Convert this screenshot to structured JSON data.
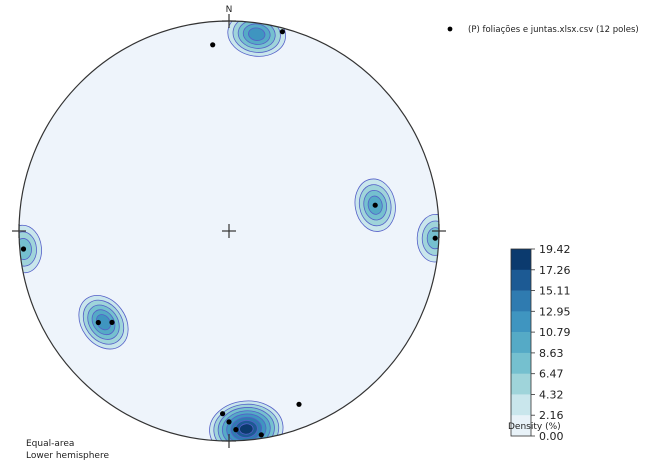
{
  "chart_data": {
    "type": "stereonet-density",
    "projection_label": [
      "Equal-area",
      "Lower hemisphere"
    ],
    "north_label": "N",
    "legend": {
      "marker": "●",
      "label": "(P) foliações e juntas.xlsx.csv (12 poles)"
    },
    "colorbar": {
      "title": "Density (%)",
      "ticks": [
        "19.42",
        "17.26",
        "15.11",
        "12.95",
        "10.79",
        "8.63",
        "6.47",
        "4.32",
        "2.16",
        "0.00"
      ],
      "colors": [
        "#0b3a6e",
        "#1c5a94",
        "#2f7bb0",
        "#3f95c0",
        "#55aac6",
        "#75c0cf",
        "#9fd4da",
        "#c9e6ec",
        "#e8f2f8"
      ]
    },
    "poles_plunge_trend": [
      [
        2,
        15
      ],
      [
        12,
        355
      ],
      [
        2,
        265
      ],
      [
        30,
        80
      ],
      [
        2,
        92
      ],
      [
        25,
        235
      ],
      [
        30,
        232
      ],
      [
        14,
        182
      ],
      [
        10,
        180
      ],
      [
        6,
        178
      ],
      [
        2,
        171
      ],
      [
        12,
        158
      ]
    ],
    "density_clusters": [
      {
        "trend": 8,
        "plunge": 6,
        "peak_level": 5
      },
      {
        "trend": 265,
        "plunge": 2,
        "peak_level": 3
      },
      {
        "trend": 80,
        "plunge": 30,
        "peak_level": 4
      },
      {
        "trend": 92,
        "plunge": 2,
        "peak_level": 3
      },
      {
        "trend": 234,
        "plunge": 27,
        "peak_level": 5
      },
      {
        "trend": 175,
        "plunge": 6,
        "peak_level": 8
      }
    ]
  }
}
